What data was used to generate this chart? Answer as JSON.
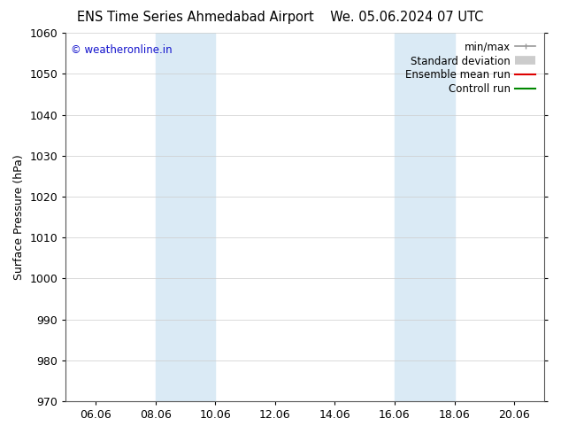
{
  "title_left": "ENS Time Series Ahmedabad Airport",
  "title_right": "We. 05.06.2024 07 UTC",
  "ylabel": "Surface Pressure (hPa)",
  "ylim": [
    970,
    1060
  ],
  "yticks": [
    970,
    980,
    990,
    1000,
    1010,
    1020,
    1030,
    1040,
    1050,
    1060
  ],
  "xtick_labels": [
    "06.06",
    "08.06",
    "10.06",
    "12.06",
    "14.06",
    "16.06",
    "18.06",
    "20.06"
  ],
  "xtick_positions": [
    1,
    3,
    5,
    7,
    9,
    11,
    13,
    15
  ],
  "xlim": [
    0,
    16
  ],
  "shade_bands": [
    {
      "x_start": 3,
      "x_end": 5
    },
    {
      "x_start": 11,
      "x_end": 13
    }
  ],
  "shade_color": "#daeaf5",
  "copyright_text": "© weatheronline.in",
  "copyright_color": "#1111cc",
  "legend_items": [
    {
      "label": "min/max",
      "color": "#999999",
      "lw": 1.2
    },
    {
      "label": "Standard deviation",
      "color": "#cccccc",
      "lw": 7
    },
    {
      "label": "Ensemble mean run",
      "color": "#dd0000",
      "lw": 1.5
    },
    {
      "label": "Controll run",
      "color": "#008800",
      "lw": 1.5
    }
  ],
  "bg_color": "#ffffff",
  "grid_color": "#cccccc",
  "title_fontsize": 10.5,
  "ylabel_fontsize": 9,
  "tick_fontsize": 9,
  "legend_fontsize": 8.5,
  "copyright_fontsize": 8.5
}
